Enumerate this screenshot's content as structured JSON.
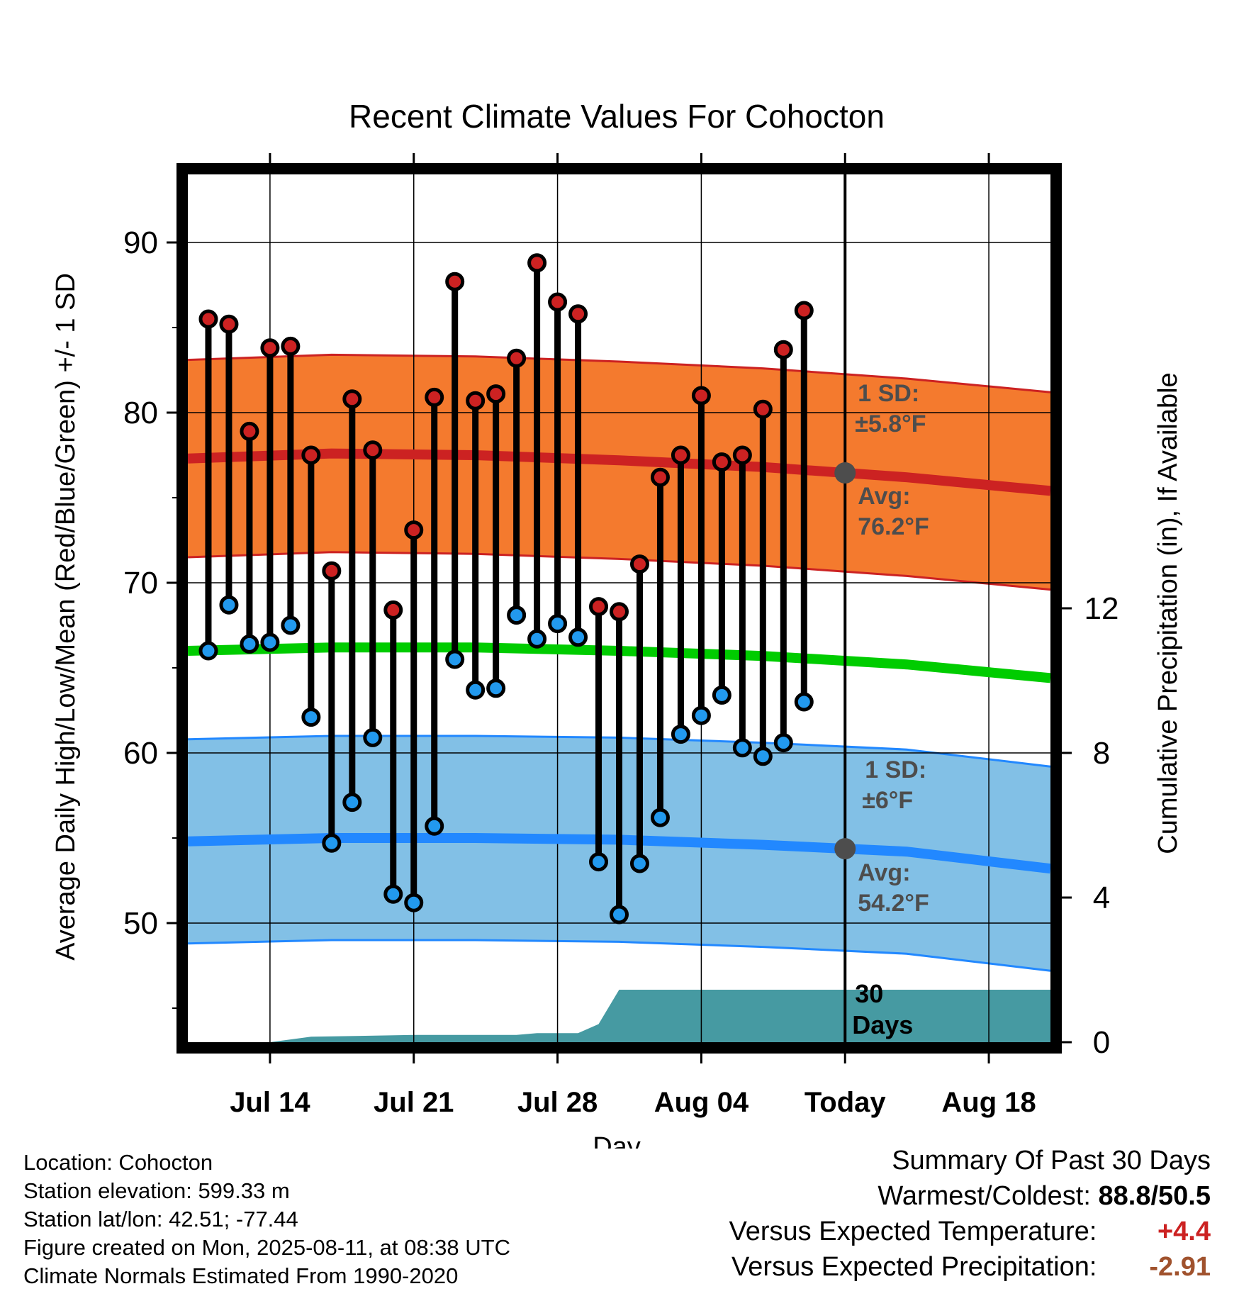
{
  "chart_data": {
    "type": "line",
    "title": "Recent Climate Values For Cohocton",
    "xlabel": "Day",
    "ylabel": "Average Daily High/Low/Mean (Red/Blue/Green) +/- 1 SD",
    "ylabel_right": "Cumulative Precipitation (in), If Available",
    "x_tick_labels": [
      "Jul 14",
      "Jul 21",
      "Jul 28",
      "Aug 04",
      "Today",
      "Aug 18"
    ],
    "y_ticks": [
      "90",
      "80",
      "70",
      "60",
      "50"
    ],
    "y2_ticks": [
      "12",
      "8",
      "4",
      "0"
    ],
    "ylim": [
      43,
      94
    ],
    "y2lim": [
      0,
      24
    ],
    "days": [
      "Jul 11",
      "Jul 12",
      "Jul 13",
      "Jul 14",
      "Jul 15",
      "Jul 16",
      "Jul 17",
      "Jul 18",
      "Jul 19",
      "Jul 20",
      "Jul 21",
      "Jul 22",
      "Jul 23",
      "Jul 24",
      "Jul 25",
      "Jul 26",
      "Jul 27",
      "Jul 28",
      "Jul 29",
      "Jul 30",
      "Jul 31",
      "Aug 01",
      "Aug 02",
      "Aug 03",
      "Aug 04",
      "Aug 05",
      "Aug 06",
      "Aug 07",
      "Aug 08",
      "Aug 09",
      "Aug 10"
    ],
    "x_range_days": [
      "Jul 10",
      "Aug 21"
    ],
    "today": "Aug 11",
    "series": [
      {
        "name": "Daily High",
        "color": "#cc2222",
        "values": [
          85.5,
          85.2,
          78.9,
          83.8,
          83.9,
          77.5,
          70.7,
          80.8,
          77.8,
          68.4,
          73.1,
          80.9,
          87.7,
          80.7,
          81.1,
          83.2,
          88.8,
          86.5,
          85.8,
          68.6,
          68.3,
          71.1,
          76.2,
          77.5,
          81.0,
          77.1,
          77.5,
          80.2,
          83.7,
          86.0,
          null
        ]
      },
      {
        "name": "Daily Low",
        "color": "#2299ee",
        "values": [
          66.0,
          68.7,
          66.4,
          66.5,
          67.5,
          62.1,
          54.7,
          57.1,
          60.9,
          51.7,
          51.2,
          55.7,
          65.5,
          63.7,
          63.8,
          68.1,
          66.7,
          67.6,
          66.8,
          53.6,
          50.5,
          53.5,
          56.2,
          61.1,
          62.2,
          63.4,
          60.3,
          59.8,
          60.6,
          63.0,
          null
        ]
      },
      {
        "name": "Normal High",
        "color": "#cc2222",
        "x": [
          "Jul 10",
          "Jul 17",
          "Jul 24",
          "Jul 31",
          "Aug 07",
          "Aug 14",
          "Aug 21"
        ],
        "values": [
          77.3,
          77.6,
          77.5,
          77.2,
          76.8,
          76.2,
          75.4
        ],
        "sd": 5.8
      },
      {
        "name": "Normal Mean",
        "color": "#00cc00",
        "x": [
          "Jul 10",
          "Jul 17",
          "Jul 24",
          "Jul 31",
          "Aug 07",
          "Aug 14",
          "Aug 21"
        ],
        "values": [
          66.0,
          66.2,
          66.2,
          66.0,
          65.7,
          65.2,
          64.4
        ]
      },
      {
        "name": "Normal Low",
        "color": "#2288ff",
        "x": [
          "Jul 10",
          "Jul 17",
          "Jul 24",
          "Jul 31",
          "Aug 07",
          "Aug 14",
          "Aug 21"
        ],
        "values": [
          54.8,
          55.0,
          55.0,
          54.9,
          54.6,
          54.2,
          53.2
        ],
        "sd": 6.0
      },
      {
        "name": "Cumulative Precipitation",
        "color": "#3a9aa0",
        "x": [
          "Jul 10",
          "Jul 14",
          "Jul 16",
          "Jul 21",
          "Jul 26",
          "Jul 27",
          "Jul 29",
          "Jul 30",
          "Jul 31",
          "Aug 21"
        ],
        "values": [
          0,
          0,
          0.15,
          0.2,
          0.2,
          0.25,
          0.25,
          0.5,
          1.45,
          1.45
        ]
      }
    ],
    "annotations": {
      "high_sd_label": "1 SD:",
      "high_sd_value": "±5.8°F",
      "high_avg_label": "Avg:",
      "high_avg_value": "76.2°F",
      "low_sd_label": "1 SD:",
      "low_sd_value": "±6°F",
      "low_avg_label": "Avg:",
      "low_avg_value": "54.2°F",
      "window_label_1": "30",
      "window_label_2": "Days"
    },
    "colors": {
      "high_band": "#f47a2e",
      "low_band": "#82c0e6",
      "precip_fill": "#469aa2",
      "marker_outline": "#000000",
      "avg_marker": "#4d4d4d"
    },
    "grid": true
  },
  "footer": {
    "location": "Location: Cohocton",
    "elevation": "Station elevation: 599.33 m",
    "latlon": "Station lat/lon: 42.51; -77.44",
    "created": "Figure created on Mon, 2025-08-11, at 08:38 UTC",
    "normals": "Climate Normals Estimated From 1990-2020"
  },
  "summary": {
    "title": "Summary Of Past 30 Days",
    "warmest_label": "Warmest/Coldest:",
    "warmest_value": "88.8",
    "separator": "/",
    "coldest_value": "50.5",
    "temp_label": "Versus Expected Temperature:",
    "temp_value": "+4.4",
    "precip_label": "Versus Expected Precipitation:",
    "precip_value": "-2.91"
  }
}
